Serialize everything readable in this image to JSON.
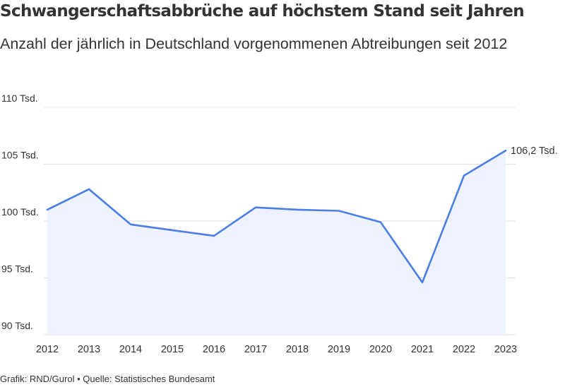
{
  "title": "Schwangerschaftsabbrüche auf höchstem Stand seit Jahren",
  "subtitle": "Anzahl der jährlich in Deutschland vorgenommenen Abtreibungen seit 2012",
  "footer": "Grafik: RND/Gurol • Quelle: Statistisches Bundesamt",
  "colors": {
    "line": "#4a7ee6",
    "area": "#eef2fc",
    "grid": "#dedede",
    "text": "#333333"
  },
  "chart_data": {
    "type": "area",
    "x": [
      "2012",
      "2013",
      "2014",
      "2015",
      "2016",
      "2017",
      "2018",
      "2019",
      "2020",
      "2021",
      "2022",
      "2023"
    ],
    "series": [
      {
        "values": [
          101.0,
          102.8,
          99.7,
          99.2,
          98.7,
          101.2,
          101.0,
          100.9,
          99.9,
          94.6,
          104.0,
          106.2
        ]
      }
    ],
    "ylim": [
      90,
      110
    ],
    "yticks": [
      90,
      95,
      100,
      105,
      110
    ],
    "ytick_labels": [
      "90 Tsd.",
      "95 Tsd.",
      "100 Tsd.",
      "105 Tsd.",
      "110 Tsd."
    ],
    "data_labels": [
      {
        "index": 11,
        "text": "106,2 Tsd."
      }
    ],
    "grid": true
  }
}
